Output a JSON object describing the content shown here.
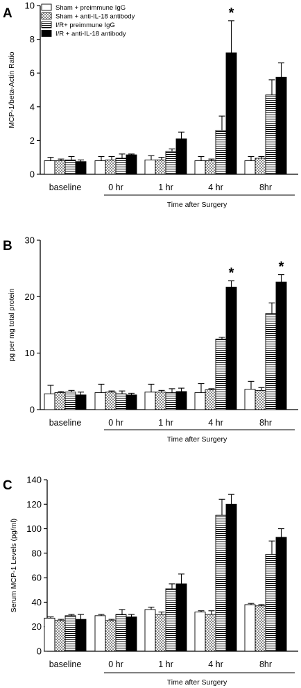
{
  "legend": {
    "items": [
      {
        "label": "Sham + preimmune IgG",
        "pattern": "white"
      },
      {
        "label": "Sham + anti-IL-18 antibody",
        "pattern": "dots"
      },
      {
        "label": "I/R+ preimmune IgG",
        "pattern": "hlines"
      },
      {
        "label": "I/R + anti-IL-18 antibody",
        "pattern": "black"
      }
    ]
  },
  "chart_data": [
    {
      "type": "bar",
      "panel_letter": "A",
      "ylabel": "MCP-1/beta-Actin Ratio",
      "xlabel": "Time after Surgery",
      "ylim": [
        0,
        10
      ],
      "yticks": [
        "0",
        "2",
        "4",
        "6",
        "8",
        "10"
      ],
      "categories": [
        "baseline",
        "0 hr",
        "1 hr",
        "4 hr",
        "8hr"
      ],
      "series": [
        {
          "name": "Sham + preimmune IgG",
          "values": [
            0.8,
            0.8,
            0.85,
            0.8,
            0.8
          ],
          "errors": [
            0.2,
            0.25,
            0.25,
            0.25,
            0.25
          ]
        },
        {
          "name": "Sham + anti-IL-18 antibody",
          "values": [
            0.8,
            0.85,
            0.85,
            0.8,
            0.95
          ],
          "errors": [
            0.1,
            0.2,
            0.15,
            0.1,
            0.1
          ]
        },
        {
          "name": "I/R+ preimmune IgG",
          "values": [
            0.85,
            0.95,
            1.35,
            2.6,
            4.7
          ],
          "errors": [
            0.2,
            0.25,
            0.15,
            0.85,
            0.9
          ]
        },
        {
          "name": "I/R + anti-IL-18 antibody",
          "values": [
            0.75,
            1.15,
            2.1,
            7.2,
            5.75
          ],
          "errors": [
            0.1,
            0.05,
            0.4,
            1.9,
            0.85
          ]
        }
      ],
      "annotations": [
        {
          "category": "4 hr",
          "text": "*"
        }
      ]
    },
    {
      "type": "bar",
      "panel_letter": "B",
      "ylabel": "pg per mg total protein",
      "xlabel": "Time after Surgery",
      "ylim": [
        0,
        30
      ],
      "yticks": [
        "0",
        "10",
        "20",
        "30"
      ],
      "categories": [
        "baseline",
        "0 hr",
        "1 hr",
        "4 hr",
        "8hr"
      ],
      "series": [
        {
          "name": "Sham + preimmune IgG",
          "values": [
            2.8,
            3.0,
            3.1,
            3.0,
            3.6
          ],
          "errors": [
            1.5,
            1.5,
            1.4,
            1.6,
            1.4
          ]
        },
        {
          "name": "Sham + anti-IL-18 antibody",
          "values": [
            3.0,
            3.1,
            3.1,
            3.5,
            3.4
          ],
          "errors": [
            0.2,
            0.2,
            0.3,
            0.2,
            0.5
          ]
        },
        {
          "name": "I/R+ preimmune IgG",
          "values": [
            3.1,
            2.8,
            3.0,
            12.5,
            17.0
          ],
          "errors": [
            0.3,
            0.5,
            0.7,
            0.3,
            1.9
          ]
        },
        {
          "name": "I/R + anti-IL-18 antibody",
          "values": [
            2.6,
            2.6,
            3.2,
            21.7,
            22.6
          ],
          "errors": [
            0.5,
            0.3,
            0.6,
            1.1,
            1.3
          ]
        }
      ],
      "annotations": [
        {
          "category": "4 hr",
          "text": "*"
        },
        {
          "category": "8hr",
          "text": "*"
        }
      ]
    },
    {
      "type": "bar",
      "panel_letter": "C",
      "ylabel": "Serum MCP-1 Levels (pg/ml)",
      "xlabel": "Time after Surgery",
      "ylim": [
        0,
        140
      ],
      "yticks": [
        "0",
        "20",
        "40",
        "60",
        "80",
        "100",
        "120",
        "140"
      ],
      "categories": [
        "baseline",
        "0 hr",
        "1 hr",
        "4 hr",
        "8hr"
      ],
      "series": [
        {
          "name": "Sham + preimmune IgG",
          "values": [
            27,
            29,
            34,
            32,
            38
          ],
          "errors": [
            1,
            1,
            2,
            1,
            1
          ]
        },
        {
          "name": "Sham + anti-IL-18 antibody",
          "values": [
            25,
            25,
            30,
            30,
            37
          ],
          "errors": [
            1,
            1,
            2,
            3,
            1
          ]
        },
        {
          "name": "I/R+ preimmune IgG",
          "values": [
            29,
            30,
            51,
            111,
            79
          ],
          "errors": [
            1,
            4,
            4,
            13,
            11
          ]
        },
        {
          "name": "I/R + anti-IL-18 antibody",
          "values": [
            26,
            28,
            55,
            120,
            93
          ],
          "errors": [
            4,
            2,
            8,
            8,
            7
          ]
        }
      ],
      "annotations": []
    }
  ]
}
